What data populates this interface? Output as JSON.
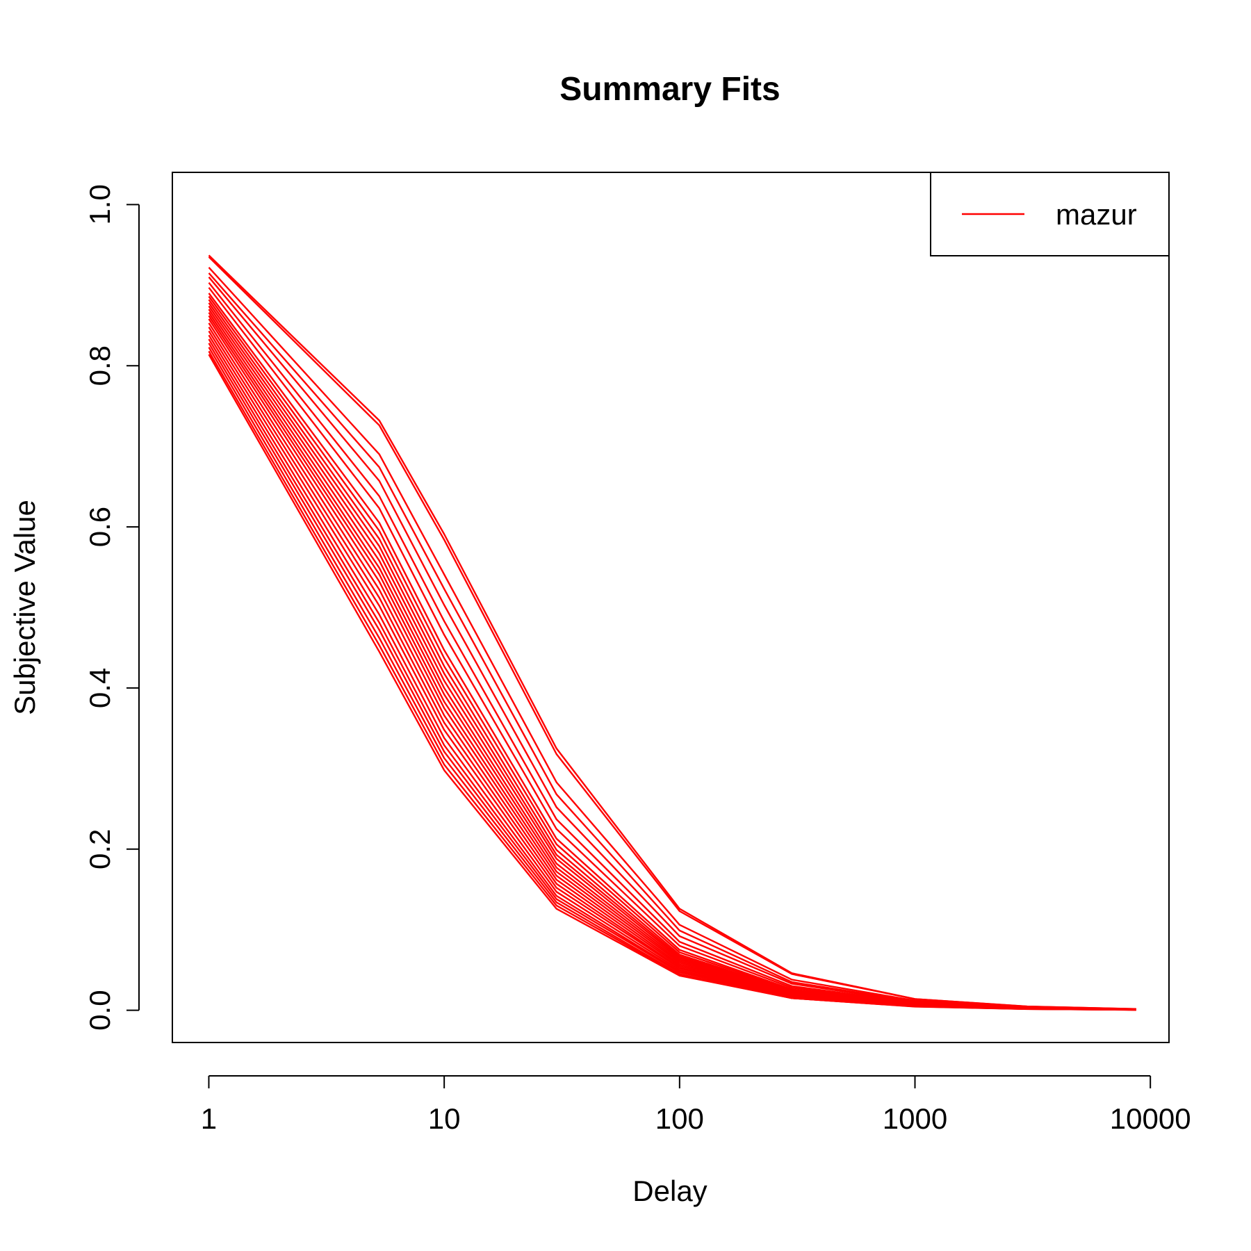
{
  "chart_data": {
    "type": "line",
    "title": "Summary Fits",
    "xlabel": "Delay",
    "ylabel": "Subjective Value",
    "x_scale": "log",
    "xlim": [
      0.7,
      12000
    ],
    "ylim": [
      -0.04,
      1.04
    ],
    "x_ticks": [
      1,
      10,
      100,
      1000,
      10000
    ],
    "x_tick_labels": [
      "1",
      "10",
      "100",
      "1000",
      "10000"
    ],
    "y_ticks": [
      0.0,
      0.2,
      0.4,
      0.6,
      0.8,
      1.0
    ],
    "y_tick_labels": [
      "0.0",
      "0.2",
      "0.4",
      "0.6",
      "0.8",
      "1.0"
    ],
    "grid": false,
    "legend": {
      "position": "top-right",
      "entries": [
        {
          "label": "mazur",
          "color": "#ff0000"
        }
      ]
    },
    "line_color": "#ff0000",
    "x": [
      1,
      5.3,
      10,
      30,
      100,
      300,
      1000,
      3000,
      8700
    ],
    "series": [
      {
        "values": [
          0.937,
          0.732,
          0.591,
          0.325,
          0.126,
          0.046,
          0.014,
          0.0048,
          0.0017
        ]
      },
      {
        "values": [
          0.935,
          0.726,
          0.584,
          0.318,
          0.123,
          0.045,
          0.014,
          0.0047,
          0.0016
        ]
      },
      {
        "values": [
          0.922,
          0.69,
          0.541,
          0.283,
          0.106,
          0.038,
          0.012,
          0.004,
          0.0014
        ]
      },
      {
        "values": [
          0.915,
          0.674,
          0.523,
          0.268,
          0.099,
          0.035,
          0.011,
          0.0037,
          0.0013
        ]
      },
      {
        "values": [
          0.91,
          0.657,
          0.503,
          0.252,
          0.092,
          0.033,
          0.01,
          0.0035,
          0.0012
        ]
      },
      {
        "values": [
          0.903,
          0.638,
          0.483,
          0.237,
          0.085,
          0.03,
          0.0093,
          0.0031,
          0.0011
        ]
      },
      {
        "values": [
          0.897,
          0.623,
          0.466,
          0.225,
          0.08,
          0.028,
          0.0087,
          0.0029,
          0.001
        ]
      },
      {
        "values": [
          0.89,
          0.605,
          0.447,
          0.213,
          0.075,
          0.026,
          0.0081,
          0.0027,
          0.0009
        ]
      },
      {
        "values": [
          0.886,
          0.595,
          0.437,
          0.206,
          0.072,
          0.025,
          0.0078,
          0.0026,
          0.0009
        ]
      },
      {
        "values": [
          0.882,
          0.585,
          0.427,
          0.199,
          0.069,
          0.024,
          0.0075,
          0.0025,
          0.0009
        ]
      },
      {
        "values": [
          0.878,
          0.576,
          0.418,
          0.193,
          0.067,
          0.023,
          0.0072,
          0.0024,
          0.0008
        ]
      },
      {
        "values": [
          0.874,
          0.567,
          0.409,
          0.188,
          0.065,
          0.022,
          0.0069,
          0.0023,
          0.0008
        ]
      },
      {
        "values": [
          0.87,
          0.558,
          0.4,
          0.182,
          0.063,
          0.022,
          0.0067,
          0.0022,
          0.0008
        ]
      },
      {
        "values": [
          0.866,
          0.549,
          0.392,
          0.177,
          0.061,
          0.021,
          0.0065,
          0.0022,
          0.0007
        ]
      },
      {
        "values": [
          0.862,
          0.541,
          0.383,
          0.172,
          0.059,
          0.02,
          0.0063,
          0.0021,
          0.0007
        ]
      },
      {
        "values": [
          0.858,
          0.532,
          0.375,
          0.167,
          0.057,
          0.02,
          0.0061,
          0.002,
          0.0007
        ]
      },
      {
        "values": [
          0.853,
          0.522,
          0.366,
          0.162,
          0.055,
          0.019,
          0.0059,
          0.002,
          0.0007
        ]
      },
      {
        "values": [
          0.848,
          0.512,
          0.357,
          0.157,
          0.053,
          0.018,
          0.0057,
          0.0019,
          0.0007
        ]
      },
      {
        "values": [
          0.843,
          0.502,
          0.348,
          0.152,
          0.052,
          0.018,
          0.0055,
          0.0018,
          0.0006
        ]
      },
      {
        "values": [
          0.838,
          0.491,
          0.338,
          0.147,
          0.05,
          0.017,
          0.0053,
          0.0018,
          0.0006
        ]
      },
      {
        "values": [
          0.833,
          0.481,
          0.329,
          0.142,
          0.048,
          0.016,
          0.0051,
          0.0017,
          0.0006
        ]
      },
      {
        "values": [
          0.828,
          0.472,
          0.321,
          0.138,
          0.047,
          0.016,
          0.005,
          0.0017,
          0.0006
        ]
      },
      {
        "values": [
          0.823,
          0.462,
          0.313,
          0.134,
          0.045,
          0.015,
          0.0048,
          0.0016,
          0.0006
        ]
      },
      {
        "values": [
          0.818,
          0.453,
          0.305,
          0.13,
          0.044,
          0.015,
          0.0047,
          0.0016,
          0.0005
        ]
      },
      {
        "values": [
          0.814,
          0.445,
          0.298,
          0.126,
          0.043,
          0.015,
          0.0045,
          0.0015,
          0.0005
        ]
      }
    ]
  }
}
